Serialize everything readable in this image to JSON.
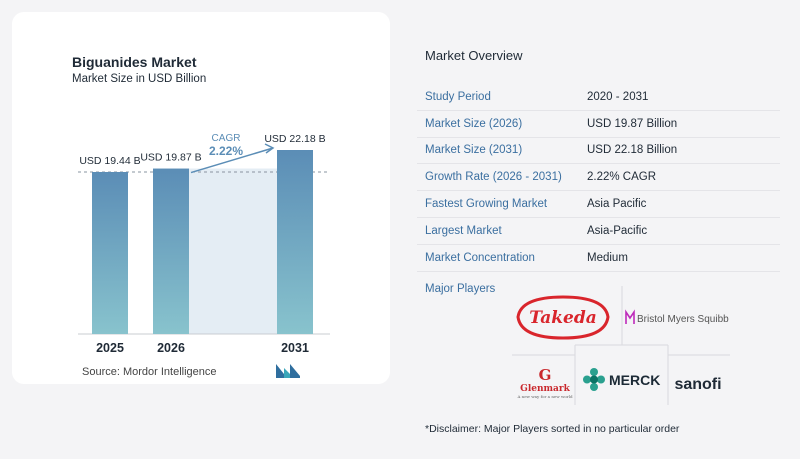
{
  "chart_data": {
    "type": "bar",
    "title": "Biguanides Market",
    "subtitle": "Market Size in USD Billion",
    "categories": [
      "2025",
      "2026",
      "2031"
    ],
    "values": [
      19.44,
      19.87,
      22.18
    ],
    "value_labels": [
      "USD 19.44 B",
      "USD 19.87 B",
      "USD 22.18 B"
    ],
    "cagr_label": "CAGR",
    "cagr_value": "2.22%",
    "bar_color_top": "#5b8db6",
    "bar_color_bottom": "#88c3cd",
    "source": "Source:  Mordor Intelligence"
  },
  "overview": {
    "title": "Market Overview",
    "rows": [
      {
        "label": "Study Period",
        "value": "2020 - 2031"
      },
      {
        "label": "Market Size (2026)",
        "value": "USD 19.87 Billion"
      },
      {
        "label": "Market Size (2031)",
        "value": "USD 22.18 Billion"
      },
      {
        "label": "Growth Rate (2026 - 2031)",
        "value": "2.22% CAGR"
      },
      {
        "label": "Fastest Growing Market",
        "value": "Asia Pacific"
      },
      {
        "label": "Largest Market",
        "value": "Asia-Pacific"
      },
      {
        "label": "Market Concentration",
        "value": "Medium"
      }
    ]
  },
  "players": {
    "title": "Major Players",
    "logos": [
      "Takeda",
      "Bristol Myers Squibb",
      "Glenmark",
      "A new way for a new world",
      "MERCK",
      "sanofi"
    ]
  },
  "disclaimer": "*Disclaimer: Major Players sorted in no particular order"
}
